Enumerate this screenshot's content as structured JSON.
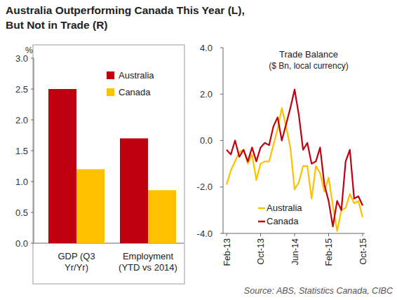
{
  "title": [
    "Australia Outperforming Canada This Year (L),",
    "But Not in Trade (R)"
  ],
  "source": "Source: ABS, Statistics Canada, CIBC",
  "chart_data": [
    {
      "type": "bar",
      "y_label": "%",
      "categories": [
        "GDP (Q3\nYr/Yr)",
        "Employment\n(YTD vs 2014)"
      ],
      "series": [
        {
          "name": "Australia",
          "color": "#c0000f",
          "values": [
            2.5,
            1.7
          ]
        },
        {
          "name": "Canada",
          "color": "#ffc000",
          "values": [
            1.2,
            0.86
          ]
        }
      ],
      "ylim": [
        0,
        3
      ],
      "yticks": [
        {
          "value": 0,
          "label": "0.0"
        },
        0.5,
        {
          "value": 1,
          "label": "1.0"
        },
        1.5,
        {
          "value": 2,
          "label": "2.0"
        },
        2.5,
        {
          "value": 3,
          "label": "3.0"
        }
      ],
      "legend": "upper right"
    },
    {
      "type": "line",
      "title": "Trade Balance",
      "subtitle": "($ Bn, local currency)",
      "categories": [
        "Feb-13",
        null,
        null,
        null,
        null,
        null,
        null,
        null,
        "Oct-13",
        null,
        null,
        null,
        null,
        null,
        null,
        null,
        "Jun-14",
        null,
        null,
        null,
        null,
        null,
        null,
        null,
        "Feb-15",
        null,
        null,
        null,
        null,
        null,
        null,
        null,
        "Oct-15"
      ],
      "series": [
        {
          "name": "Australia",
          "color": "#ffc000",
          "values": [
            -1.9,
            -1.3,
            -0.9,
            -0.5,
            -0.4,
            -1.0,
            -0.6,
            -1.7,
            -1.0,
            -0.9,
            -0.9,
            -0.2,
            0.5,
            1.4,
            0.6,
            -0.3,
            -2.1,
            -1.8,
            -1.1,
            -1.1,
            -2.5,
            -1.1,
            -1.4,
            -2.2,
            -1.6,
            -2.8,
            -3.9,
            -3.0,
            -2.9,
            -2.3,
            -2.7,
            -2.6,
            -3.3
          ]
        },
        {
          "name": "Canada",
          "color": "#c0000f",
          "values": [
            -0.4,
            -0.6,
            0.0,
            -0.7,
            -0.4,
            -0.9,
            -0.3,
            -0.9,
            -0.3,
            -0.1,
            -0.2,
            0.6,
            1.0,
            0.0,
            0.7,
            1.4,
            2.2,
            1.1,
            -0.4,
            -0.1,
            -1.0,
            -0.9,
            -0.3,
            -1.9,
            -2.6,
            -3.7,
            -2.6,
            -3.0,
            -0.9,
            -0.4,
            -2.5,
            -2.4,
            -2.8
          ]
        }
      ],
      "ylim": [
        -4,
        4
      ],
      "yticks": [
        {
          "value": -4,
          "label": "-4.0"
        },
        {
          "value": -2,
          "label": "-2.0"
        },
        {
          "value": 0,
          "label": "0.0"
        },
        {
          "value": 2,
          "label": "2.0"
        },
        {
          "value": 4,
          "label": "4.0"
        }
      ],
      "legend": "lower center"
    }
  ]
}
